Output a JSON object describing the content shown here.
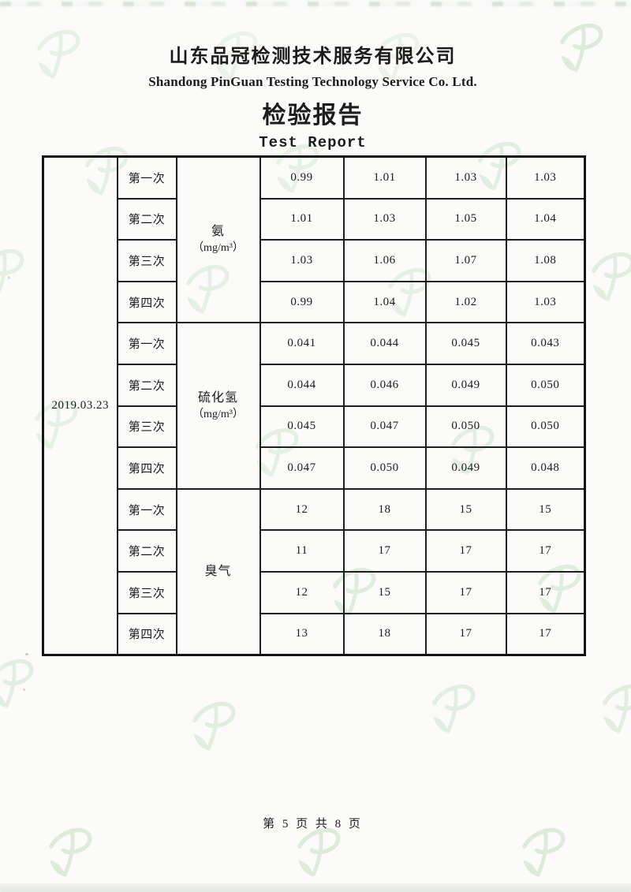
{
  "watermark": {
    "icon": "pinguan-p-leaf-logo",
    "color": "#9CC897"
  },
  "header": {
    "company_cn": "山东品冠检测技术服务有限公司",
    "company_en": "Shandong PinGuan Testing Technology Service Co. Ltd.",
    "title_cn": "检验报告",
    "title_en": "Test Report"
  },
  "table": {
    "date": "2019.03.23",
    "groups": [
      {
        "parameter": "氨",
        "unit": "（mg/m³）",
        "rows": [
          {
            "trial": "第一次",
            "values": [
              "0.99",
              "1.01",
              "1.03",
              "1.03"
            ]
          },
          {
            "trial": "第二次",
            "values": [
              "1.01",
              "1.03",
              "1.05",
              "1.04"
            ]
          },
          {
            "trial": "第三次",
            "values": [
              "1.03",
              "1.06",
              "1.07",
              "1.08"
            ]
          },
          {
            "trial": "第四次",
            "values": [
              "0.99",
              "1.04",
              "1.02",
              "1.03"
            ]
          }
        ]
      },
      {
        "parameter": "硫化氢",
        "unit": "（mg/m³）",
        "rows": [
          {
            "trial": "第一次",
            "values": [
              "0.041",
              "0.044",
              "0.045",
              "0.043"
            ]
          },
          {
            "trial": "第二次",
            "values": [
              "0.044",
              "0.046",
              "0.049",
              "0.050"
            ]
          },
          {
            "trial": "第三次",
            "values": [
              "0.045",
              "0.047",
              "0.050",
              "0.050"
            ]
          },
          {
            "trial": "第四次",
            "values": [
              "0.047",
              "0.050",
              "0.049",
              "0.048"
            ]
          }
        ]
      },
      {
        "parameter": "臭气",
        "unit": "",
        "rows": [
          {
            "trial": "第一次",
            "values": [
              "12",
              "18",
              "15",
              "15"
            ]
          },
          {
            "trial": "第二次",
            "values": [
              "11",
              "17",
              "17",
              "17"
            ]
          },
          {
            "trial": "第三次",
            "values": [
              "12",
              "15",
              "17",
              "17"
            ]
          },
          {
            "trial": "第四次",
            "values": [
              "13",
              "18",
              "17",
              "17"
            ]
          }
        ]
      }
    ]
  },
  "footer": {
    "page_text": "第 5 页 共 8 页"
  }
}
